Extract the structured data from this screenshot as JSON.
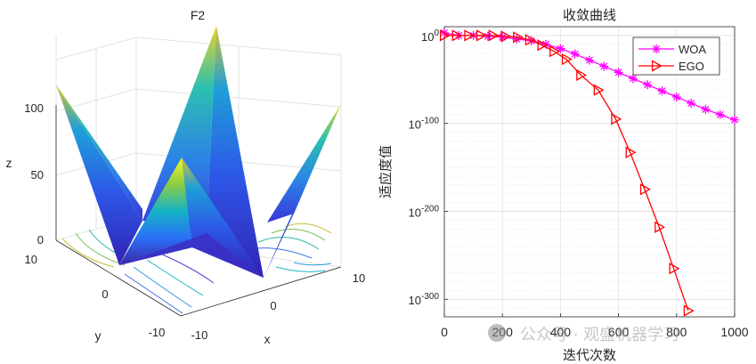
{
  "chart_data": [
    {
      "type": "surface3d",
      "title": "F2",
      "xlabel": "x",
      "ylabel": "y",
      "zlabel": "z",
      "xlim": [
        -10,
        10
      ],
      "ylim": [
        -10,
        10
      ],
      "zlim": [
        0,
        120
      ],
      "x_ticks": [
        "-10",
        "0",
        "10"
      ],
      "y_ticks": [
        "-10",
        "0",
        "10"
      ],
      "z_ticks": [
        "0",
        "50",
        "100"
      ],
      "colormap": "parula",
      "contour_projection": true,
      "grid": true
    },
    {
      "type": "line",
      "title": "收敛曲线",
      "xlabel": "迭代次数",
      "ylabel": "适应度值",
      "xlim": [
        0,
        1000
      ],
      "y_scale": "log",
      "ylim_exponent": [
        -320,
        10
      ],
      "x_ticks": [
        "0",
        "200",
        "400",
        "600",
        "800",
        "1000"
      ],
      "y_tick_labels": [
        {
          "base": "10",
          "exp": "0",
          "value": 0
        },
        {
          "base": "10",
          "exp": "-100",
          "value": -100
        },
        {
          "base": "10",
          "exp": "-200",
          "value": -200
        },
        {
          "base": "10",
          "exp": "-300",
          "value": -300
        }
      ],
      "grid": true,
      "legend_position": "top-right",
      "series": [
        {
          "name": "WOA",
          "color": "#ff00ff",
          "marker": "asterisk",
          "x": [
            0,
            50,
            100,
            150,
            200,
            250,
            300,
            350,
            400,
            450,
            500,
            550,
            600,
            650,
            700,
            750,
            800,
            850,
            900,
            950,
            1000
          ],
          "log10_y": [
            3,
            0,
            0,
            -1,
            -2,
            -4,
            -6,
            -10,
            -15,
            -21,
            -28,
            -35,
            -42,
            -49,
            -56,
            -63,
            -70,
            -77,
            -84,
            -90,
            -96
          ]
        },
        {
          "name": "EGO",
          "color": "#ff0000",
          "marker": "triangle-right",
          "x": [
            0,
            42,
            84,
            126,
            168,
            210,
            252,
            294,
            336,
            378,
            420,
            470,
            530,
            590,
            640,
            690,
            740,
            790,
            840
          ],
          "log10_y": [
            0,
            0,
            0,
            0,
            0,
            -1,
            -2,
            -5,
            -11,
            -18,
            -27,
            -45,
            -62,
            -95,
            -133,
            -175,
            -218,
            -265,
            -313
          ]
        }
      ]
    }
  ],
  "watermark": "公众号 · 观盛机器学习"
}
